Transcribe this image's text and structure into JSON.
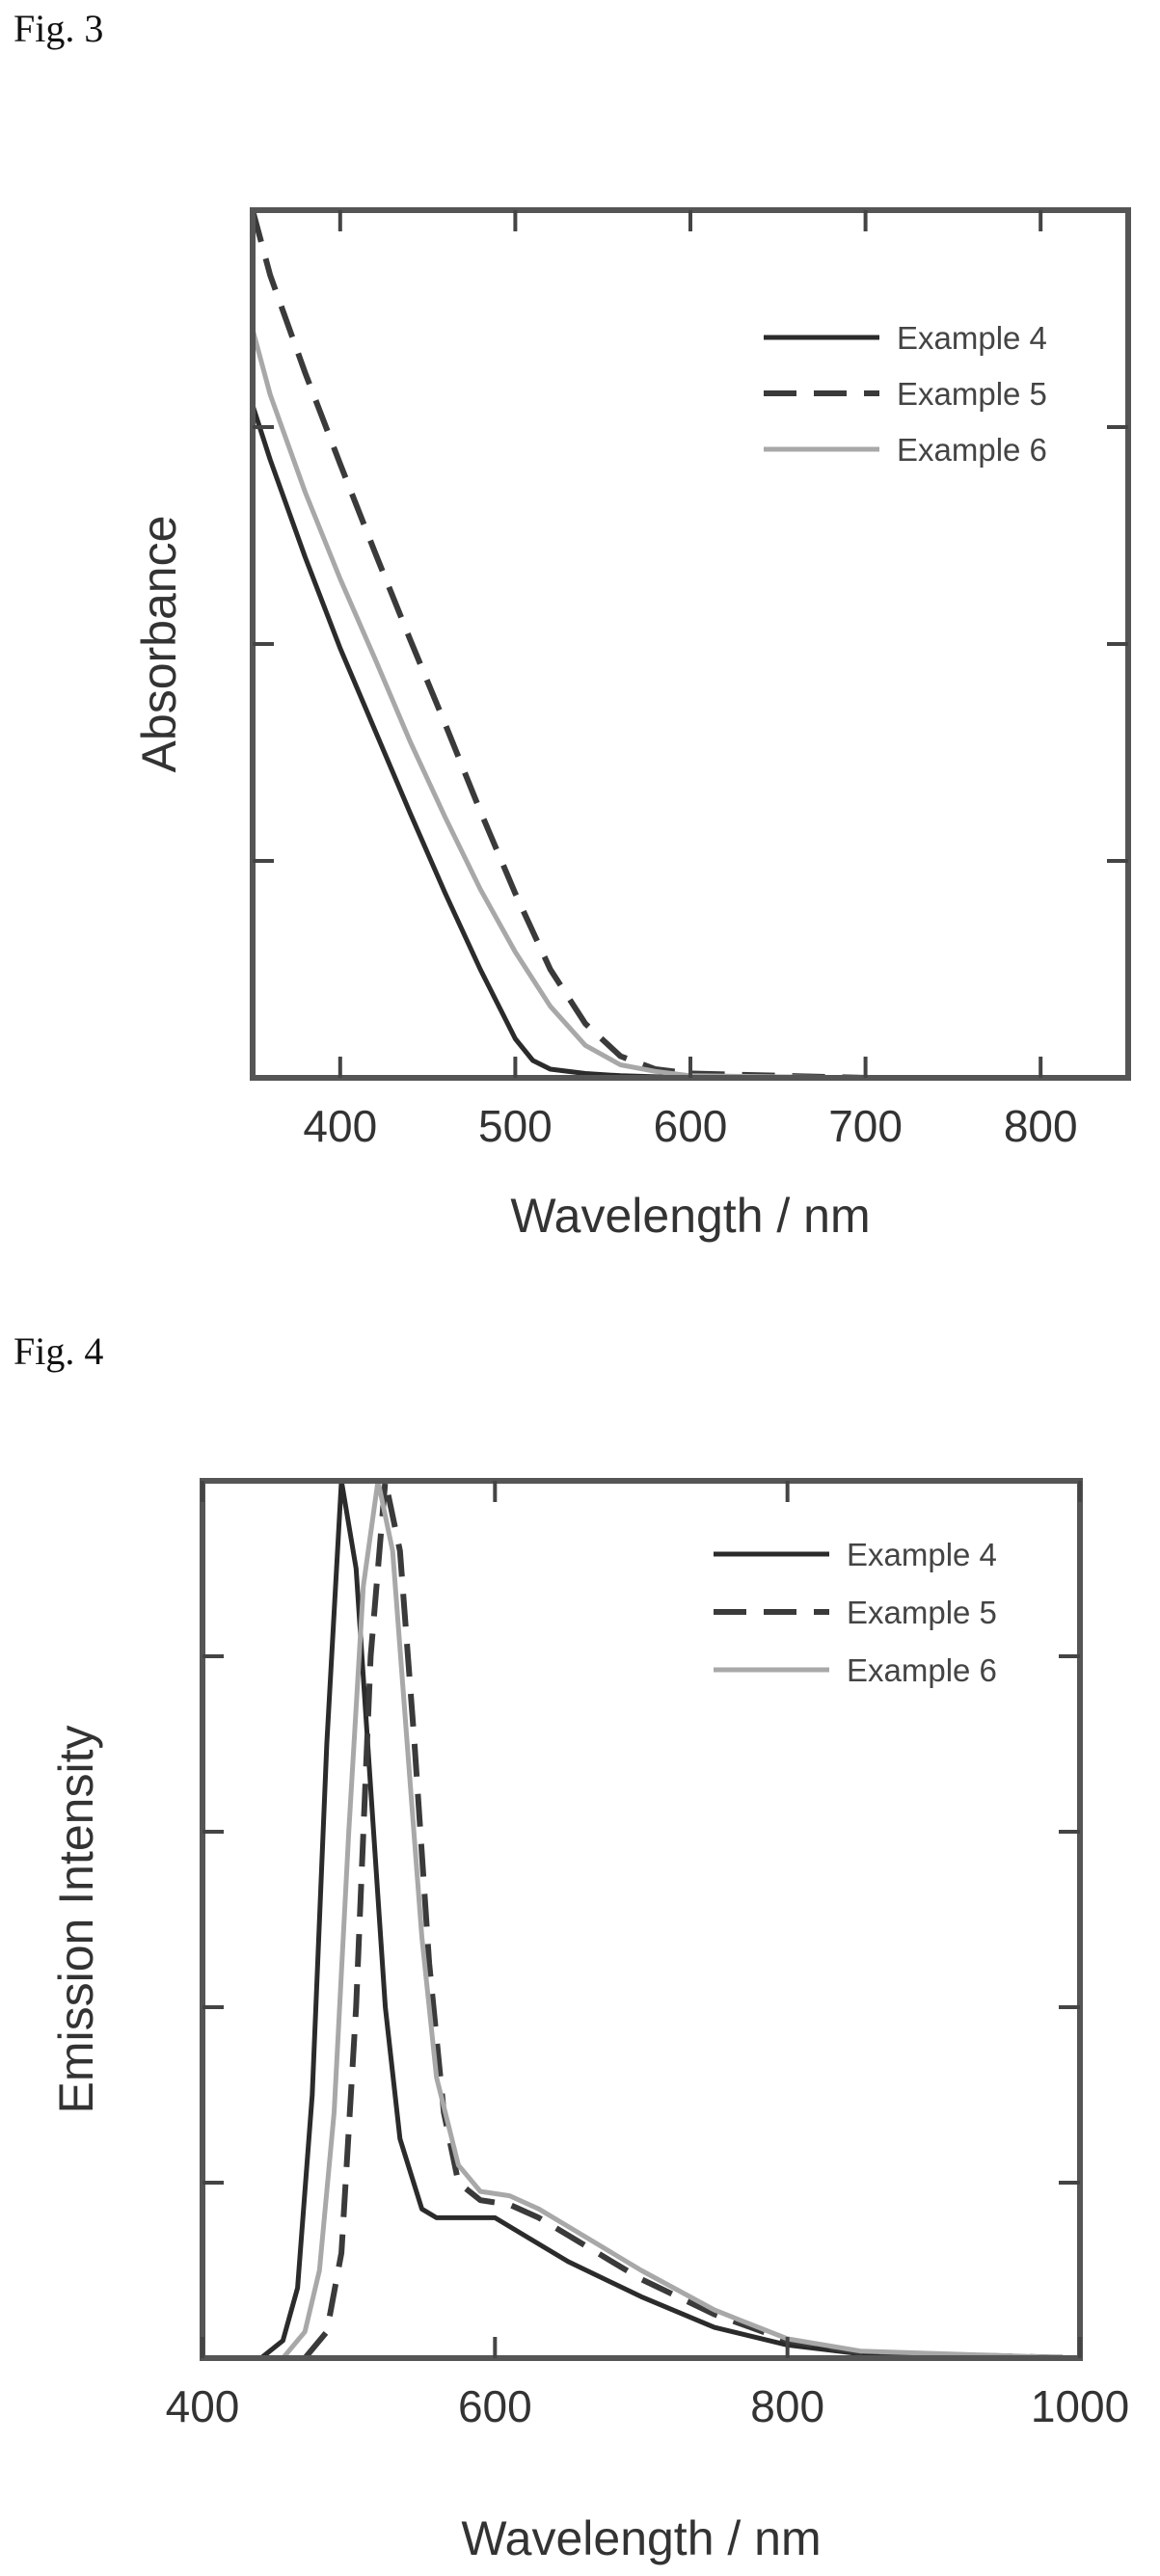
{
  "figures": [
    {
      "label": "Fig.  3"
    },
    {
      "label": "Fig.  4"
    }
  ],
  "chart_data": [
    {
      "type": "line",
      "title": "",
      "xlabel": "Wavelength / nm",
      "ylabel": "Absorbance",
      "xlim": [
        350,
        850
      ],
      "ylim": [
        0,
        4
      ],
      "xticks": [
        400,
        500,
        600,
        700,
        800
      ],
      "yticks": [
        1,
        2,
        3
      ],
      "ytick_labels_shown": false,
      "grid": false,
      "legend": "top-right",
      "series": [
        {
          "name": "Example 4",
          "style": "solid",
          "color": "#2b2b2b",
          "x": [
            350,
            360,
            380,
            400,
            420,
            440,
            460,
            480,
            500,
            510,
            520,
            540,
            560,
            600,
            700,
            850
          ],
          "y": [
            3.1,
            2.85,
            2.4,
            1.98,
            1.6,
            1.22,
            0.85,
            0.5,
            0.18,
            0.08,
            0.04,
            0.02,
            0.01,
            0.0,
            0.0,
            0.0
          ]
        },
        {
          "name": "Example 5",
          "style": "dashed",
          "color": "#3a3a3a",
          "x": [
            350,
            360,
            380,
            400,
            420,
            440,
            460,
            480,
            500,
            520,
            540,
            560,
            580,
            600,
            700,
            850
          ],
          "y": [
            4.0,
            3.7,
            3.25,
            2.83,
            2.42,
            2.02,
            1.63,
            1.23,
            0.85,
            0.5,
            0.25,
            0.1,
            0.04,
            0.02,
            0.0,
            0.0
          ]
        },
        {
          "name": "Example 6",
          "style": "solid",
          "color": "#a8a8a8",
          "x": [
            350,
            360,
            380,
            400,
            420,
            440,
            460,
            480,
            500,
            520,
            540,
            560,
            580,
            600,
            700,
            850
          ],
          "y": [
            3.45,
            3.15,
            2.7,
            2.3,
            1.93,
            1.55,
            1.2,
            0.87,
            0.58,
            0.33,
            0.15,
            0.06,
            0.03,
            0.01,
            0.0,
            0.0
          ]
        }
      ]
    },
    {
      "type": "line",
      "title": "",
      "xlabel": "Wavelength / nm",
      "ylabel": "Emission Intensity",
      "xlim": [
        400,
        1000
      ],
      "ylim": [
        0,
        1
      ],
      "xticks": [
        400,
        600,
        800,
        1000
      ],
      "yticks": [
        0.2,
        0.4,
        0.6,
        0.8
      ],
      "ytick_labels_shown": false,
      "grid": false,
      "legend": "top-right",
      "series": [
        {
          "name": "Example 4",
          "style": "solid",
          "color": "#2b2b2b",
          "x": [
            440,
            455,
            465,
            475,
            485,
            495,
            505,
            515,
            525,
            535,
            550,
            560,
            570,
            580,
            600,
            620,
            650,
            700,
            750,
            800,
            850,
            1000
          ],
          "y": [
            0.0,
            0.02,
            0.08,
            0.3,
            0.7,
            1.0,
            0.9,
            0.65,
            0.4,
            0.25,
            0.17,
            0.16,
            0.16,
            0.16,
            0.16,
            0.14,
            0.11,
            0.07,
            0.035,
            0.015,
            0.005,
            0.0
          ]
        },
        {
          "name": "Example 5",
          "style": "dashed",
          "color": "#3a3a3a",
          "x": [
            470,
            485,
            495,
            505,
            515,
            525,
            535,
            545,
            555,
            565,
            575,
            590,
            610,
            630,
            650,
            700,
            750,
            800,
            850,
            1000
          ],
          "y": [
            0.0,
            0.03,
            0.12,
            0.4,
            0.8,
            1.0,
            0.92,
            0.7,
            0.45,
            0.28,
            0.2,
            0.18,
            0.175,
            0.16,
            0.14,
            0.09,
            0.05,
            0.02,
            0.006,
            0.0
          ]
        },
        {
          "name": "Example 6",
          "style": "solid",
          "color": "#a8a8a8",
          "x": [
            455,
            470,
            480,
            490,
            500,
            510,
            520,
            530,
            540,
            550,
            560,
            575,
            590,
            610,
            630,
            650,
            700,
            750,
            800,
            850,
            1000
          ],
          "y": [
            0.0,
            0.03,
            0.1,
            0.28,
            0.6,
            0.88,
            1.0,
            0.92,
            0.7,
            0.48,
            0.32,
            0.22,
            0.19,
            0.185,
            0.17,
            0.15,
            0.1,
            0.055,
            0.022,
            0.008,
            0.0
          ]
        }
      ]
    }
  ]
}
